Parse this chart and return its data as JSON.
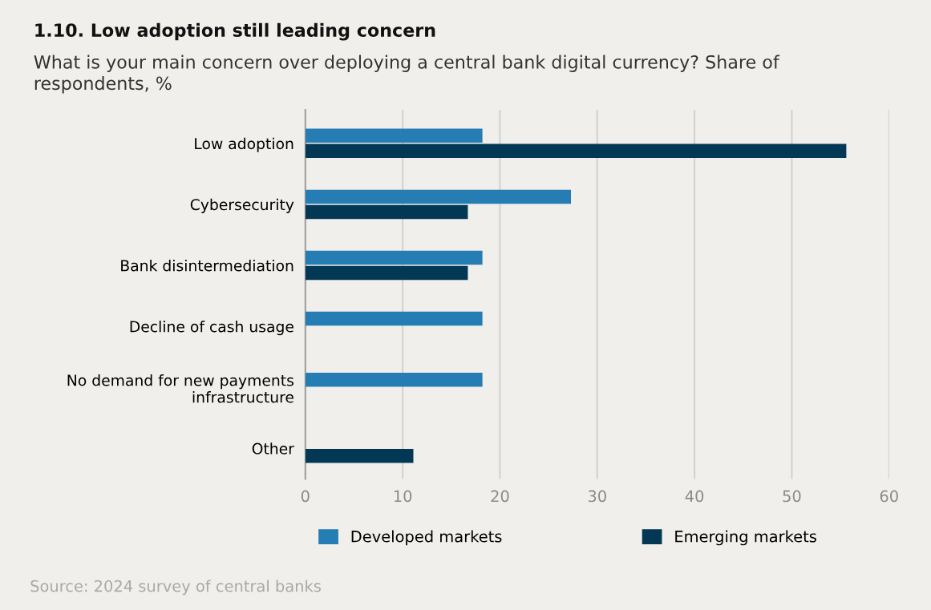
{
  "chart_data": {
    "type": "bar",
    "orientation": "horizontal",
    "title": "1.10. Low adoption still leading concern",
    "subtitle": "What is your main concern over deploying a central bank digital currency? Share of\nrespondents, %",
    "categories": [
      "Low adoption",
      "Cybersecurity",
      "Bank disintermediation",
      "Decline of cash usage",
      "No demand for new payments\ninfrastructure",
      "Other"
    ],
    "series": [
      {
        "name": "Developed markets",
        "color": "#257db3",
        "values": [
          18.2,
          27.3,
          18.2,
          18.2,
          18.2,
          null
        ]
      },
      {
        "name": "Emerging markets",
        "color": "#023853",
        "values": [
          55.6,
          16.7,
          16.7,
          null,
          null,
          11.1
        ]
      }
    ],
    "xlim": [
      0,
      60
    ],
    "xticks": [
      0,
      10,
      20,
      30,
      40,
      50,
      60
    ],
    "grid": "x",
    "legend": "bottom",
    "annotations": [
      "Source: 2024 survey of central banks"
    ]
  }
}
